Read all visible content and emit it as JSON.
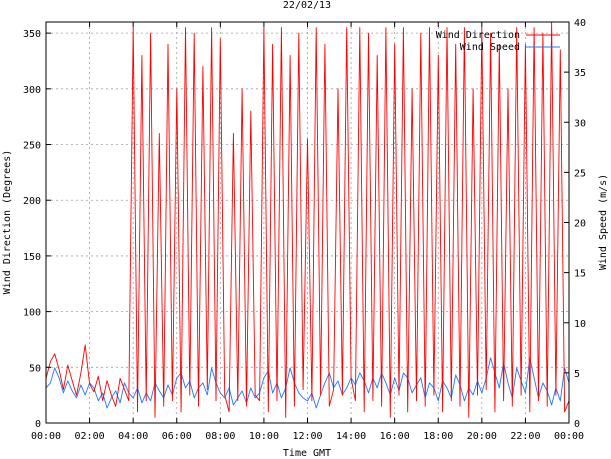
{
  "chart_data": {
    "type": "line",
    "title": "22/02/13",
    "xlabel": "Time GMT",
    "ylabel": "Wind Direction (Degrees)",
    "y2label": "Wind Speed (m/s)",
    "xlim": [
      0,
      24
    ],
    "ylim": [
      0,
      360
    ],
    "y2lim": [
      0,
      40
    ],
    "x_ticks": [
      0,
      2,
      4,
      6,
      8,
      10,
      12,
      14,
      16,
      18,
      20,
      22,
      24
    ],
    "x_tick_labels": [
      "00:00",
      "02:00",
      "04:00",
      "06:00",
      "08:00",
      "10:00",
      "12:00",
      "14:00",
      "16:00",
      "18:00",
      "20:00",
      "22:00",
      "00:00"
    ],
    "y_ticks": [
      0,
      50,
      100,
      150,
      200,
      250,
      300,
      350
    ],
    "y_tick_labels": [
      "0",
      "50",
      "100",
      "150",
      "200",
      "250",
      "300",
      "350"
    ],
    "y2_ticks": [
      0,
      5,
      10,
      15,
      20,
      25,
      30,
      35,
      40
    ],
    "y2_tick_labels": [
      "0",
      "5",
      "10",
      "15",
      "20",
      "25",
      "30",
      "35",
      "40"
    ],
    "grid": true,
    "legend_position": "top-right",
    "series": [
      {
        "name": "Wind Direction",
        "axis": "left",
        "color": "#ff0000",
        "x": [
          0.0,
          0.2,
          0.4,
          0.6,
          0.8,
          1.0,
          1.2,
          1.4,
          1.6,
          1.8,
          2.0,
          2.2,
          2.4,
          2.6,
          2.8,
          3.0,
          3.2,
          3.4,
          3.6,
          3.8,
          4.0,
          4.2,
          4.4,
          4.6,
          4.8,
          5.0,
          5.2,
          5.4,
          5.6,
          5.8,
          6.0,
          6.2,
          6.4,
          6.6,
          6.8,
          7.0,
          7.2,
          7.4,
          7.6,
          7.8,
          8.0,
          8.2,
          8.4,
          8.6,
          8.8,
          9.0,
          9.2,
          9.4,
          9.6,
          9.8,
          10.0,
          10.2,
          10.4,
          10.6,
          10.8,
          11.0,
          11.2,
          11.4,
          11.6,
          11.8,
          12.0,
          12.2,
          12.4,
          12.6,
          12.8,
          13.0,
          13.2,
          13.4,
          13.6,
          13.8,
          14.0,
          14.2,
          14.4,
          14.6,
          14.8,
          15.0,
          15.2,
          15.4,
          15.6,
          15.8,
          16.0,
          16.2,
          16.4,
          16.6,
          16.8,
          17.0,
          17.2,
          17.4,
          17.6,
          17.8,
          18.0,
          18.2,
          18.4,
          18.6,
          18.8,
          19.0,
          19.2,
          19.4,
          19.6,
          19.8,
          20.0,
          20.2,
          20.4,
          20.6,
          20.8,
          21.0,
          21.2,
          21.4,
          21.6,
          21.8,
          22.0,
          22.2,
          22.4,
          22.6,
          22.8,
          23.0,
          23.2,
          23.4,
          23.6,
          23.8,
          24.0
        ],
        "values": [
          40,
          55,
          62,
          48,
          30,
          52,
          38,
          25,
          45,
          70,
          35,
          28,
          42,
          20,
          38,
          25,
          15,
          40,
          30,
          20,
          355,
          10,
          330,
          20,
          350,
          5,
          260,
          15,
          340,
          20,
          300,
          10,
          355,
          25,
          350,
          15,
          320,
          30,
          355,
          20,
          345,
          25,
          10,
          260,
          20,
          300,
          15,
          280,
          25,
          20,
          355,
          10,
          340,
          20,
          355,
          5,
          330,
          15,
          350,
          30,
          255,
          20,
          355,
          25,
          340,
          15,
          30,
          300,
          25,
          355,
          40,
          20,
          355,
          10,
          350,
          20,
          330,
          15,
          355,
          5,
          340,
          25,
          355,
          10,
          300,
          20,
          350,
          15,
          355,
          25,
          330,
          10,
          355,
          20,
          340,
          15,
          355,
          5,
          300,
          25,
          355,
          30,
          350,
          10,
          340,
          20,
          300,
          15,
          355,
          25,
          340,
          10,
          355,
          20,
          350,
          15,
          360,
          25,
          335,
          10,
          20
        ]
      },
      {
        "name": "Wind Speed",
        "axis": "right",
        "color": "#1e78ff",
        "x": [
          0.0,
          0.2,
          0.4,
          0.6,
          0.8,
          1.0,
          1.2,
          1.4,
          1.6,
          1.8,
          2.0,
          2.2,
          2.4,
          2.6,
          2.8,
          3.0,
          3.2,
          3.4,
          3.6,
          3.8,
          4.0,
          4.2,
          4.4,
          4.6,
          4.8,
          5.0,
          5.2,
          5.4,
          5.6,
          5.8,
          6.0,
          6.2,
          6.4,
          6.6,
          6.8,
          7.0,
          7.2,
          7.4,
          7.6,
          7.8,
          8.0,
          8.2,
          8.4,
          8.6,
          8.8,
          9.0,
          9.2,
          9.4,
          9.6,
          9.8,
          10.0,
          10.2,
          10.4,
          10.6,
          10.8,
          11.0,
          11.2,
          11.4,
          11.6,
          11.8,
          12.0,
          12.2,
          12.4,
          12.6,
          12.8,
          13.0,
          13.2,
          13.4,
          13.6,
          13.8,
          14.0,
          14.2,
          14.4,
          14.6,
          14.8,
          15.0,
          15.2,
          15.4,
          15.6,
          15.8,
          16.0,
          16.2,
          16.4,
          16.6,
          16.8,
          17.0,
          17.2,
          17.4,
          17.6,
          17.8,
          18.0,
          18.2,
          18.4,
          18.6,
          18.8,
          19.0,
          19.2,
          19.4,
          19.6,
          19.8,
          20.0,
          20.2,
          20.4,
          20.6,
          20.8,
          21.0,
          21.2,
          21.4,
          21.6,
          21.8,
          22.0,
          22.2,
          22.4,
          22.6,
          22.8,
          23.0,
          23.2,
          23.4,
          23.6,
          23.8,
          24.0
        ],
        "values": [
          3.5,
          4.0,
          5.5,
          4.5,
          3.0,
          4.2,
          3.2,
          2.5,
          3.8,
          2.8,
          4.0,
          3.5,
          2.2,
          3.0,
          1.5,
          2.5,
          3.2,
          2.0,
          4.0,
          3.0,
          2.5,
          3.5,
          2.0,
          3.0,
          2.2,
          4.0,
          3.2,
          2.5,
          3.8,
          2.8,
          4.5,
          5.0,
          3.5,
          4.2,
          2.5,
          3.5,
          4.0,
          2.8,
          5.5,
          4.0,
          3.0,
          2.5,
          3.5,
          1.8,
          2.5,
          3.2,
          2.0,
          3.5,
          2.5,
          3.0,
          4.5,
          5.2,
          3.0,
          4.0,
          2.5,
          3.5,
          5.5,
          4.0,
          3.0,
          2.5,
          2.2,
          3.0,
          1.5,
          2.8,
          4.0,
          5.0,
          3.5,
          4.2,
          2.8,
          3.5,
          4.5,
          3.8,
          5.0,
          4.2,
          3.0,
          4.5,
          3.5,
          5.0,
          4.0,
          2.8,
          4.5,
          3.2,
          5.0,
          4.5,
          3.0,
          3.8,
          4.5,
          2.5,
          4.0,
          3.5,
          2.2,
          4.2,
          3.5,
          2.5,
          4.8,
          3.8,
          2.2,
          3.5,
          2.8,
          4.2,
          3.0,
          4.5,
          6.5,
          5.0,
          3.5,
          6.0,
          4.0,
          2.5,
          5.5,
          4.2,
          3.0,
          6.5,
          4.5,
          2.5,
          4.0,
          3.2,
          1.8,
          3.5,
          2.2,
          5.5,
          4.0
        ]
      }
    ]
  }
}
